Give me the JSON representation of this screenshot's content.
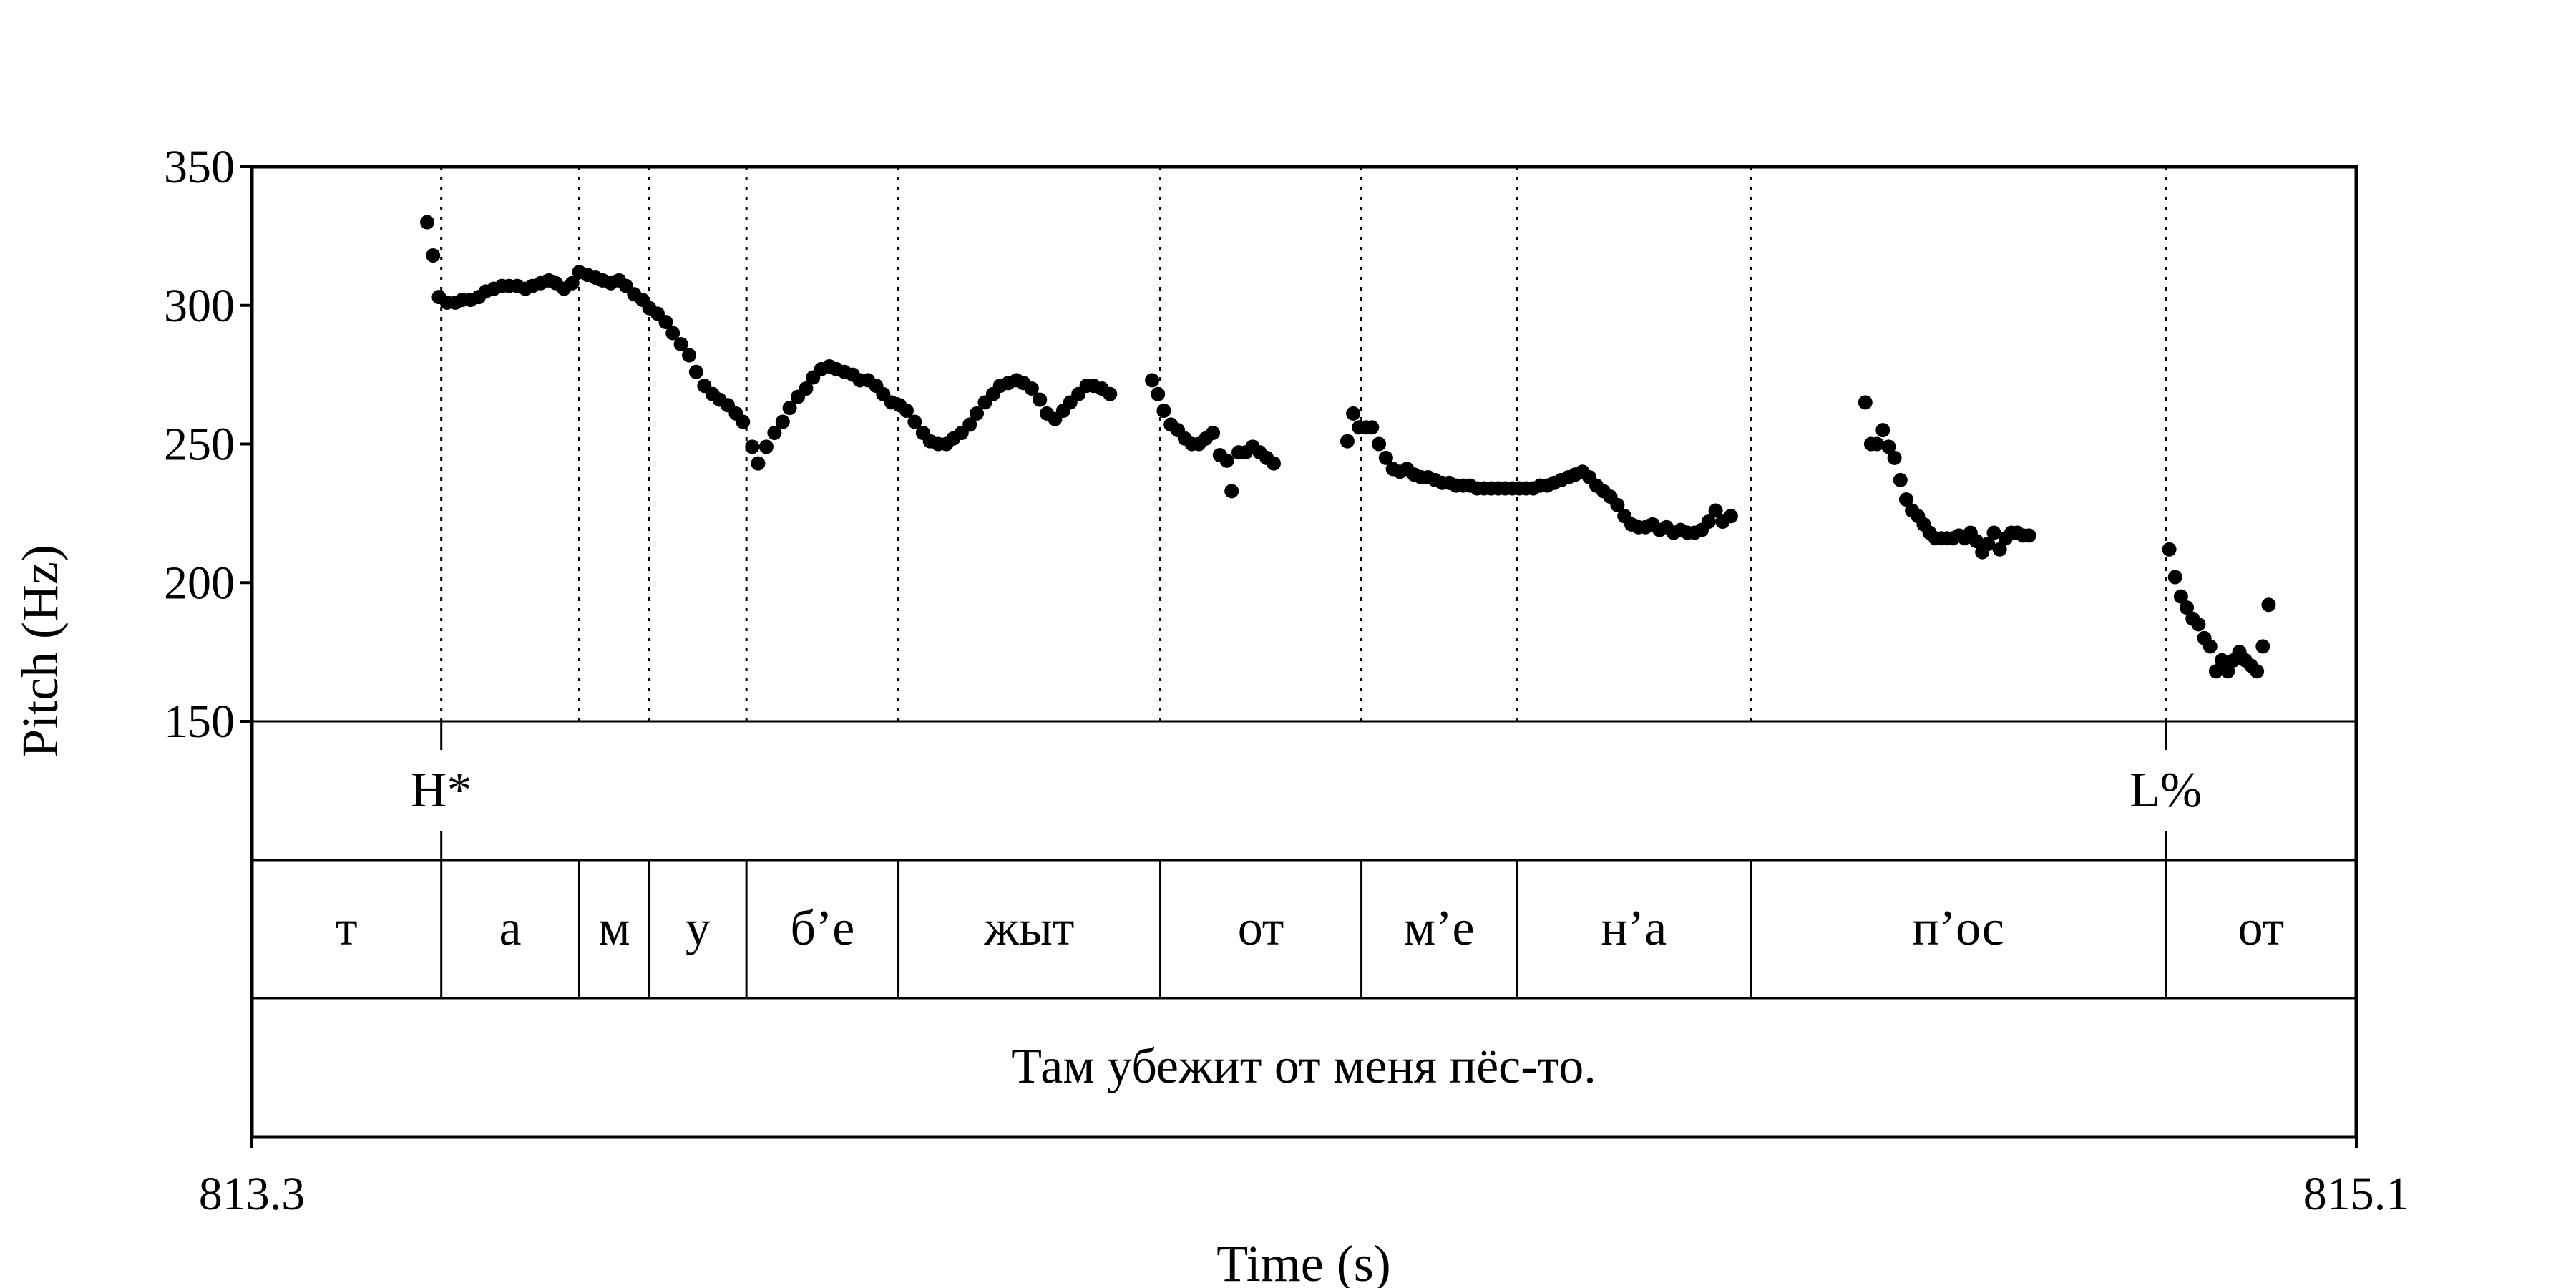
{
  "chart_data": {
    "type": "scatter",
    "title": "",
    "xlabel": "Time (s)",
    "ylabel": "Pitch (Hz)",
    "xlim": [
      813.3,
      815.1
    ],
    "ylim": [
      150,
      350
    ],
    "x_tick_labels": [
      "813.3",
      "815.1"
    ],
    "y_ticks": [
      150,
      200,
      250,
      300,
      350
    ],
    "y_tick_labels": [
      "150",
      "200",
      "250",
      "300",
      "350"
    ],
    "grid": false,
    "tone_tier": [
      {
        "time": 813.462,
        "label": "H*"
      },
      {
        "time": 814.937,
        "label": "L%"
      }
    ],
    "segment_tier": {
      "boundaries": [
        813.462,
        813.58,
        813.64,
        813.723,
        813.853,
        814.077,
        814.249,
        814.382,
        814.582,
        814.937
      ],
      "labels": [
        "т",
        "а",
        "м",
        "у",
        "б’е",
        "жыт",
        "от",
        "м’е",
        "н’а",
        "п’ос",
        "от"
      ]
    },
    "sentence": "Там убежит от меня пёс-то.",
    "series": [
      {
        "points": [
          [
            813.45,
            330
          ],
          [
            813.455,
            318
          ],
          [
            813.46,
            303
          ],
          [
            813.467,
            301
          ],
          [
            813.474,
            301
          ],
          [
            813.48,
            302
          ],
          [
            813.487,
            302
          ],
          [
            813.494,
            303
          ],
          [
            813.5,
            305
          ],
          [
            813.507,
            306
          ],
          [
            813.514,
            307
          ],
          [
            813.52,
            307
          ],
          [
            813.527,
            307
          ],
          [
            813.534,
            306
          ],
          [
            813.54,
            307
          ],
          [
            813.547,
            308
          ],
          [
            813.554,
            309
          ],
          [
            813.56,
            308
          ],
          [
            813.567,
            306
          ],
          [
            813.574,
            308
          ],
          [
            813.58,
            312
          ],
          [
            813.587,
            311
          ],
          [
            813.594,
            310
          ],
          [
            813.6,
            309
          ],
          [
            813.607,
            308
          ],
          [
            813.614,
            309
          ],
          [
            813.62,
            307
          ],
          [
            813.627,
            304
          ],
          [
            813.634,
            302
          ],
          [
            813.64,
            299
          ],
          [
            813.647,
            297
          ],
          [
            813.654,
            294
          ],
          [
            813.66,
            290
          ],
          [
            813.667,
            286
          ],
          [
            813.674,
            282
          ],
          [
            813.68,
            276
          ],
          [
            813.687,
            271
          ],
          [
            813.694,
            268
          ],
          [
            813.7,
            266
          ],
          [
            813.707,
            264
          ],
          [
            813.714,
            261
          ],
          [
            813.72,
            258
          ],
          [
            813.728,
            249
          ],
          [
            813.733,
            243
          ],
          [
            813.74,
            249
          ],
          [
            813.747,
            254
          ],
          [
            813.754,
            258
          ],
          [
            813.76,
            263
          ],
          [
            813.767,
            267
          ],
          [
            813.774,
            270
          ],
          [
            813.78,
            274
          ],
          [
            813.787,
            277
          ],
          [
            813.794,
            278
          ],
          [
            813.8,
            277
          ],
          [
            813.807,
            276
          ],
          [
            813.814,
            275
          ],
          [
            813.82,
            273
          ],
          [
            813.827,
            273
          ],
          [
            813.834,
            271
          ],
          [
            813.84,
            268
          ],
          [
            813.847,
            265
          ],
          [
            813.854,
            264
          ],
          [
            813.86,
            262
          ],
          [
            813.867,
            258
          ],
          [
            813.874,
            254
          ],
          [
            813.88,
            251
          ],
          [
            813.887,
            250
          ],
          [
            813.894,
            250
          ],
          [
            813.9,
            252
          ],
          [
            813.907,
            254
          ],
          [
            813.914,
            257
          ],
          [
            813.92,
            261
          ],
          [
            813.927,
            265
          ],
          [
            813.934,
            268
          ],
          [
            813.94,
            271
          ],
          [
            813.947,
            272
          ],
          [
            813.954,
            273
          ],
          [
            813.96,
            272
          ],
          [
            813.967,
            270
          ],
          [
            813.974,
            266
          ],
          [
            813.98,
            261
          ],
          [
            813.987,
            259
          ],
          [
            813.994,
            262
          ],
          [
            814.0,
            265
          ],
          [
            814.007,
            268
          ],
          [
            814.014,
            271
          ],
          [
            814.02,
            271
          ],
          [
            814.027,
            270
          ],
          [
            814.034,
            268
          ],
          [
            814.07,
            273
          ],
          [
            814.075,
            268
          ],
          [
            814.08,
            262
          ],
          [
            814.086,
            257
          ],
          [
            814.092,
            255
          ],
          [
            814.098,
            252
          ],
          [
            814.104,
            250
          ],
          [
            814.11,
            250
          ],
          [
            814.116,
            252
          ],
          [
            814.122,
            254
          ],
          [
            814.128,
            246
          ],
          [
            814.134,
            244
          ],
          [
            814.138,
            233
          ],
          [
            814.144,
            247
          ],
          [
            814.15,
            247
          ],
          [
            814.156,
            249
          ],
          [
            814.162,
            247
          ],
          [
            814.168,
            245
          ],
          [
            814.174,
            243
          ],
          [
            814.237,
            251
          ],
          [
            814.242,
            261
          ],
          [
            814.247,
            256
          ],
          [
            814.253,
            256
          ],
          [
            814.258,
            256
          ],
          [
            814.264,
            250
          ],
          [
            814.27,
            245
          ],
          [
            814.276,
            241
          ],
          [
            814.282,
            240
          ],
          [
            814.288,
            241
          ],
          [
            814.294,
            239
          ],
          [
            814.3,
            238
          ],
          [
            814.306,
            238
          ],
          [
            814.312,
            237
          ],
          [
            814.318,
            236
          ],
          [
            814.324,
            236
          ],
          [
            814.33,
            235
          ],
          [
            814.336,
            235
          ],
          [
            814.342,
            235
          ],
          [
            814.348,
            234
          ],
          [
            814.354,
            234
          ],
          [
            814.36,
            234
          ],
          [
            814.366,
            234
          ],
          [
            814.372,
            234
          ],
          [
            814.378,
            234
          ],
          [
            814.384,
            234
          ],
          [
            814.39,
            234
          ],
          [
            814.396,
            234
          ],
          [
            814.402,
            235
          ],
          [
            814.408,
            235
          ],
          [
            814.414,
            236
          ],
          [
            814.42,
            237
          ],
          [
            814.426,
            238
          ],
          [
            814.432,
            239
          ],
          [
            814.438,
            240
          ],
          [
            814.444,
            238
          ],
          [
            814.45,
            235
          ],
          [
            814.456,
            233
          ],
          [
            814.462,
            231
          ],
          [
            814.468,
            228
          ],
          [
            814.474,
            224
          ],
          [
            814.48,
            221
          ],
          [
            814.486,
            220
          ],
          [
            814.492,
            220
          ],
          [
            814.498,
            221
          ],
          [
            814.504,
            219
          ],
          [
            814.51,
            220
          ],
          [
            814.516,
            218
          ],
          [
            814.522,
            219
          ],
          [
            814.528,
            218
          ],
          [
            814.534,
            218
          ],
          [
            814.54,
            219
          ],
          [
            814.546,
            222
          ],
          [
            814.552,
            226
          ],
          [
            814.558,
            222
          ],
          [
            814.565,
            224
          ],
          [
            814.68,
            265
          ],
          [
            814.685,
            250
          ],
          [
            814.69,
            250
          ],
          [
            814.695,
            255
          ],
          [
            814.7,
            249
          ],
          [
            814.705,
            245
          ],
          [
            814.71,
            237
          ],
          [
            814.715,
            230
          ],
          [
            814.72,
            226
          ],
          [
            814.725,
            224
          ],
          [
            814.73,
            221
          ],
          [
            814.735,
            218
          ],
          [
            814.74,
            216
          ],
          [
            814.745,
            216
          ],
          [
            814.75,
            216
          ],
          [
            814.755,
            216
          ],
          [
            814.76,
            217
          ],
          [
            814.765,
            216
          ],
          [
            814.77,
            218
          ],
          [
            814.775,
            215
          ],
          [
            814.78,
            211
          ],
          [
            814.785,
            214
          ],
          [
            814.79,
            218
          ],
          [
            814.795,
            212
          ],
          [
            814.8,
            216
          ],
          [
            814.805,
            218
          ],
          [
            814.81,
            218
          ],
          [
            814.815,
            217
          ],
          [
            814.82,
            217
          ],
          [
            814.94,
            212
          ],
          [
            814.945,
            202
          ],
          [
            814.95,
            195
          ],
          [
            814.955,
            191
          ],
          [
            814.96,
            187
          ],
          [
            814.965,
            185
          ],
          [
            814.97,
            180
          ],
          [
            814.975,
            177
          ],
          [
            814.98,
            168
          ],
          [
            814.985,
            172
          ],
          [
            814.99,
            168
          ],
          [
            814.995,
            172
          ],
          [
            815.0,
            175
          ],
          [
            815.005,
            172
          ],
          [
            815.01,
            170
          ],
          [
            815.015,
            168
          ],
          [
            815.02,
            177
          ],
          [
            815.025,
            192
          ]
        ]
      }
    ]
  }
}
